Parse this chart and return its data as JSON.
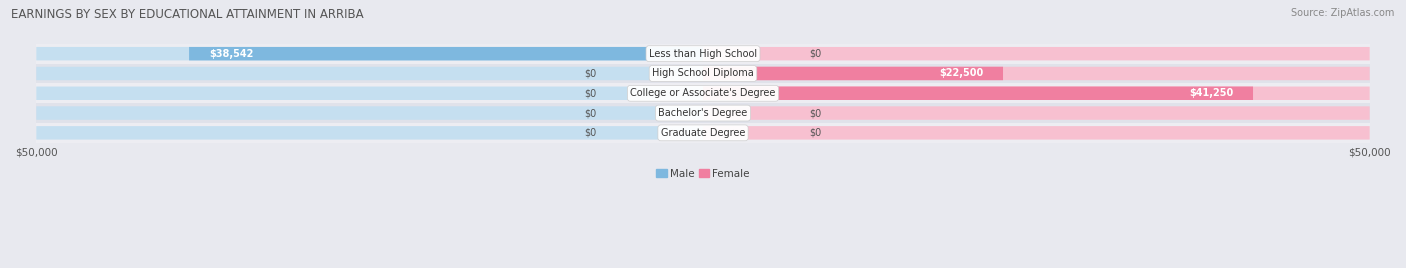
{
  "title": "EARNINGS BY SEX BY EDUCATIONAL ATTAINMENT IN ARRIBA",
  "source": "Source: ZipAtlas.com",
  "categories": [
    "Less than High School",
    "High School Diploma",
    "College or Associate's Degree",
    "Bachelor's Degree",
    "Graduate Degree"
  ],
  "male_values": [
    38542,
    0,
    0,
    0,
    0
  ],
  "female_values": [
    0,
    22500,
    41250,
    0,
    0
  ],
  "male_labels": [
    "$38,542",
    "$0",
    "$0",
    "$0",
    "$0"
  ],
  "female_labels": [
    "$0",
    "$22,500",
    "$41,250",
    "$0",
    "$0"
  ],
  "male_color": "#7eb8df",
  "female_color": "#f07fa0",
  "male_color_light": "#c5dff0",
  "female_color_light": "#f7c0d0",
  "row_bg_even": "#ededf2",
  "row_bg_odd": "#e0e2ea",
  "fig_bg": "#e8e9ef",
  "axis_limit": 50000,
  "title_fontsize": 8.5,
  "source_fontsize": 7,
  "cat_fontsize": 7,
  "val_fontsize": 7,
  "tick_fontsize": 7.5,
  "legend_fontsize": 7.5,
  "figsize": [
    14.06,
    2.68
  ],
  "dpi": 100
}
